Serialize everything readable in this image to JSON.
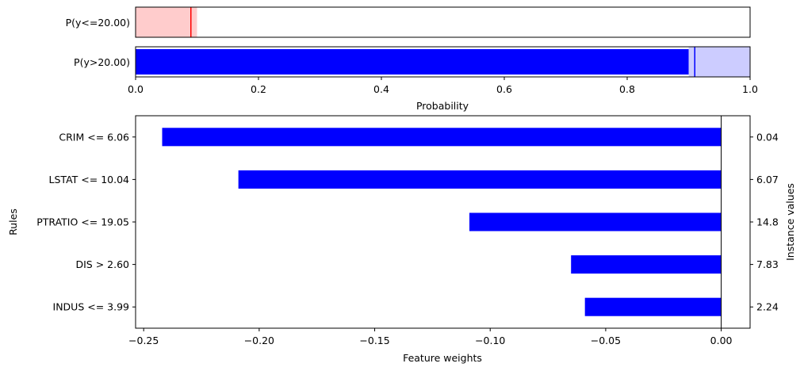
{
  "chart_data": [
    {
      "type": "bar",
      "orientation": "horizontal",
      "categories": [
        "P(y<=20.00)",
        "P(y>20.00)"
      ],
      "series": [
        {
          "values": [
            0.09,
            0.9
          ],
          "uncertainty_low": [
            0.0,
            0.9
          ],
          "uncertainty_high": [
            0.1,
            1.0
          ],
          "colors": [
            "#ff0000",
            "#0000ff"
          ],
          "band_colors": [
            "#ffcccc",
            "#ccccff"
          ],
          "marker_values": [
            0.09,
            0.91
          ]
        }
      ],
      "xlabel": "Probability",
      "xlim": [
        0,
        1
      ],
      "xticks": [
        "0.0",
        "0.2",
        "0.4",
        "0.6",
        "0.8",
        "1.0"
      ],
      "xtick_values": [
        0.0,
        0.2,
        0.4,
        0.6,
        0.8,
        1.0
      ]
    },
    {
      "type": "bar",
      "orientation": "horizontal",
      "categories": [
        "CRIM <= 6.06",
        "LSTAT <= 10.04",
        "PTRATIO <= 19.05",
        "DIS > 2.60",
        "INDUS <= 3.99"
      ],
      "series": [
        {
          "values": [
            -0.242,
            -0.209,
            -0.109,
            -0.065,
            -0.059
          ],
          "color": "#0000ff"
        }
      ],
      "instance_values": [
        "0.04",
        "6.07",
        "14.8",
        "7.83",
        "2.24"
      ],
      "xlabel": "Feature weights",
      "ylabel": "Rules",
      "ylabel_right": "Instance values",
      "xlim": [
        -0.2535,
        0.0125
      ],
      "xticks": [
        "−0.25",
        "−0.20",
        "−0.15",
        "−0.10",
        "−0.05",
        "0.00"
      ],
      "xtick_values": [
        -0.25,
        -0.2,
        -0.15,
        -0.1,
        -0.05,
        0.0
      ]
    }
  ]
}
